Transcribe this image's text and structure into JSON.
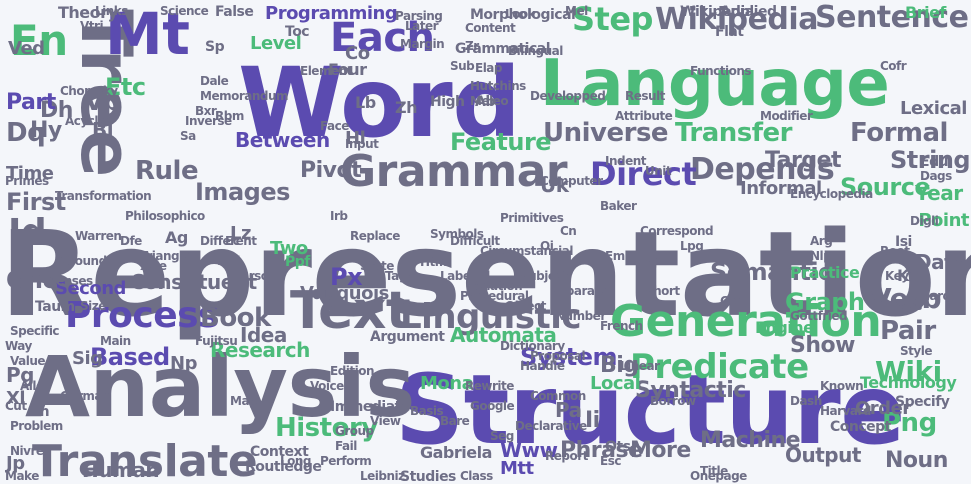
{
  "palette": {
    "gray": "#6e6e86",
    "purple": "#5b4bb0",
    "green": "#4cbb7a",
    "light_gray": "#8a8aa0",
    "pale_gray": "#9c9cae",
    "background": "#f4f6fa"
  },
  "words": [
    {
      "text": "Representation",
      "color": "gray"
    },
    {
      "text": "Structure",
      "color": "purple"
    },
    {
      "text": "Word",
      "color": "purple"
    },
    {
      "text": "Language",
      "color": "green"
    },
    {
      "text": "Analysis",
      "color": "gray"
    },
    {
      "text": "Tree",
      "color": "gray"
    },
    {
      "text": "Mt",
      "color": "purple"
    },
    {
      "text": "Text",
      "color": "gray"
    },
    {
      "text": "Generation",
      "color": "green"
    },
    {
      "text": "Grammar",
      "color": "gray"
    },
    {
      "text": "Translate",
      "color": "gray"
    },
    {
      "text": "Process",
      "color": "purple"
    },
    {
      "text": "Linguistic",
      "color": "gray"
    },
    {
      "text": "Each",
      "color": "purple"
    },
    {
      "text": "En",
      "color": "green"
    },
    {
      "text": "Wikipedia",
      "color": "gray"
    },
    {
      "text": "Sentence",
      "color": "gray"
    },
    {
      "text": "Step",
      "color": "green"
    },
    {
      "text": "Universe",
      "color": "gray"
    },
    {
      "text": "Transfer",
      "color": "green"
    },
    {
      "text": "Depends",
      "color": "gray"
    },
    {
      "text": "Direct",
      "color": "purple"
    },
    {
      "text": "Predicate",
      "color": "green"
    },
    {
      "text": "Images",
      "color": "gray"
    },
    {
      "text": "Rule",
      "color": "gray"
    },
    {
      "text": "Feature",
      "color": "green"
    },
    {
      "text": "History",
      "color": "green"
    },
    {
      "text": "System",
      "color": "purple"
    },
    {
      "text": "Wiki",
      "color": "green"
    },
    {
      "text": "Png",
      "color": "green"
    },
    {
      "text": "Book",
      "color": "gray"
    },
    {
      "text": "Research",
      "color": "green"
    },
    {
      "text": "Based",
      "color": "purple"
    },
    {
      "text": "Between",
      "color": "purple"
    },
    {
      "text": "Formal",
      "color": "gray"
    },
    {
      "text": "String",
      "color": "gray"
    },
    {
      "text": "Verb",
      "color": "gray"
    },
    {
      "text": "Pair",
      "color": "gray"
    },
    {
      "text": "Graph",
      "color": "green"
    },
    {
      "text": "Semantic",
      "color": "gray"
    },
    {
      "text": "Data",
      "color": "gray"
    },
    {
      "text": "Lexical",
      "color": "gray"
    },
    {
      "text": "Target",
      "color": "gray"
    },
    {
      "text": "Source",
      "color": "green"
    },
    {
      "text": "Year",
      "color": "green"
    },
    {
      "text": "Point",
      "color": "green"
    },
    {
      "text": "Informal",
      "color": "gray"
    },
    {
      "text": "Human",
      "color": "gray"
    },
    {
      "text": "Machine",
      "color": "gray"
    },
    {
      "text": "Output",
      "color": "gray"
    },
    {
      "text": "Noun",
      "color": "gray"
    },
    {
      "text": "Phrase",
      "color": "gray"
    },
    {
      "text": "More",
      "color": "gray"
    },
    {
      "text": "Www",
      "color": "purple"
    },
    {
      "text": "Mtt",
      "color": "purple"
    },
    {
      "text": "Ots",
      "color": "gray"
    },
    {
      "text": "Automata",
      "color": "green"
    },
    {
      "text": "Syntactic",
      "color": "gray"
    },
    {
      "text": "Show",
      "color": "gray"
    },
    {
      "text": "Order",
      "color": "gray"
    },
    {
      "text": "Technology",
      "color": "green"
    },
    {
      "text": "Local",
      "color": "green"
    },
    {
      "text": "Big",
      "color": "gray"
    },
    {
      "text": "Pa",
      "color": "gray"
    },
    {
      "text": "Ii",
      "color": "gray"
    },
    {
      "text": "Idea",
      "color": "gray"
    },
    {
      "text": "Px",
      "color": "purple"
    },
    {
      "text": "Vauquois",
      "color": "gray"
    },
    {
      "text": "Constituent",
      "color": "gray"
    },
    {
      "text": "Second",
      "color": "purple"
    },
    {
      "text": "One",
      "color": "gray"
    },
    {
      "text": "Id",
      "color": "gray"
    },
    {
      "text": "First",
      "color": "gray"
    },
    {
      "text": "Time",
      "color": "gray"
    },
    {
      "text": "Dq",
      "color": "gray"
    },
    {
      "text": "Etc",
      "color": "green"
    },
    {
      "text": "Vp",
      "color": "gray"
    },
    {
      "text": "Bl",
      "color": "gray"
    },
    {
      "text": "Dh",
      "color": "gray"
    },
    {
      "text": "Hy",
      "color": "gray"
    },
    {
      "text": "Part",
      "color": "purple"
    },
    {
      "text": "Ved",
      "color": "gray"
    },
    {
      "text": "Theory",
      "color": "gray"
    },
    {
      "text": "Level",
      "color": "green"
    },
    {
      "text": "Programming",
      "color": "purple"
    },
    {
      "text": "Toc",
      "color": "gray"
    },
    {
      "text": "False",
      "color": "gray"
    },
    {
      "text": "Four",
      "color": "gray"
    },
    {
      "text": "Co",
      "color": "gray"
    },
    {
      "text": "Lb",
      "color": "gray"
    },
    {
      "text": "Hl",
      "color": "gray"
    },
    {
      "text": "Zh",
      "color": "gray"
    },
    {
      "text": "Uk",
      "color": "gray"
    },
    {
      "text": "Pivot",
      "color": "gray"
    },
    {
      "text": "Two",
      "color": "green"
    },
    {
      "text": "Lz",
      "color": "gray"
    },
    {
      "text": "Sp",
      "color": "gray"
    },
    {
      "text": "Ag",
      "color": "gray"
    },
    {
      "text": "Sig",
      "color": "gray"
    },
    {
      "text": "Np",
      "color": "gray"
    },
    {
      "text": "Pg",
      "color": "gray"
    },
    {
      "text": "Xl",
      "color": "gray"
    },
    {
      "text": "Jp",
      "color": "gray"
    },
    {
      "text": "Mona",
      "color": "green"
    },
    {
      "text": "Engine",
      "color": "green"
    },
    {
      "text": "Practice",
      "color": "green"
    },
    {
      "text": "Ppf",
      "color": "green"
    },
    {
      "text": "Ab",
      "color": "gray"
    },
    {
      "text": "High",
      "color": "gray"
    },
    {
      "text": "Edu",
      "color": "gray"
    },
    {
      "text": "Isi",
      "color": "gray"
    },
    {
      "text": "Ka",
      "color": "gray"
    },
    {
      "text": "Wikipedia",
      "color": "gray"
    },
    {
      "text": "Bilingual",
      "color": "gray"
    },
    {
      "text": "Morphological",
      "color": "gray"
    },
    {
      "text": "Grammatical",
      "color": "gray"
    },
    {
      "text": "Applied",
      "color": "gray"
    },
    {
      "text": "Brief",
      "color": "green"
    },
    {
      "text": "Flat",
      "color": "gray"
    },
    {
      "text": "Look",
      "color": "gray"
    },
    {
      "text": "Links",
      "color": "gray"
    },
    {
      "text": "Science",
      "color": "gray"
    },
    {
      "text": "Parsing",
      "color": "gray"
    },
    {
      "text": "Content",
      "color": "gray"
    },
    {
      "text": "Functions",
      "color": "gray"
    },
    {
      "text": "Margin",
      "color": "gray"
    },
    {
      "text": "Element",
      "color": "gray"
    },
    {
      "text": "Memorandum",
      "color": "gray"
    },
    {
      "text": "Later",
      "color": "gray"
    },
    {
      "text": "Hutchins",
      "color": "gray"
    },
    {
      "text": "Transformation",
      "color": "gray"
    },
    {
      "text": "Philosophico",
      "color": "gray"
    },
    {
      "text": "Inverse",
      "color": "gray"
    },
    {
      "text": "Face",
      "color": "gray"
    },
    {
      "text": "Input",
      "color": "gray"
    },
    {
      "text": "Different",
      "color": "gray"
    },
    {
      "text": "Replace",
      "color": "gray"
    },
    {
      "text": "Difficult",
      "color": "gray"
    },
    {
      "text": "Circumstancial",
      "color": "gray"
    },
    {
      "text": "Primitives",
      "color": "gray"
    },
    {
      "text": "Relation",
      "color": "gray"
    },
    {
      "text": "Separate",
      "color": "gray"
    },
    {
      "text": "Correspond",
      "color": "gray"
    },
    {
      "text": "Encyclopedia",
      "color": "gray"
    },
    {
      "text": "Modifier",
      "color": "gray"
    },
    {
      "text": "Attribute",
      "color": "gray"
    },
    {
      "text": "Developped",
      "color": "gray"
    },
    {
      "text": "Result",
      "color": "gray"
    },
    {
      "text": "Unit",
      "color": "gray"
    },
    {
      "text": "Indent",
      "color": "gray"
    },
    {
      "text": "Baker",
      "color": "gray"
    },
    {
      "text": "Computer",
      "color": "gray"
    },
    {
      "text": "Labeled",
      "color": "gray"
    },
    {
      "text": "Procedural",
      "color": "gray"
    },
    {
      "text": "Object",
      "color": "gray"
    },
    {
      "text": "Number",
      "color": "gray"
    },
    {
      "text": "French",
      "color": "gray"
    },
    {
      "text": "Dictionary",
      "color": "gray"
    },
    {
      "text": "Proposal",
      "color": "gray"
    },
    {
      "text": "Argument",
      "color": "gray"
    },
    {
      "text": "Declarative",
      "color": "gray"
    },
    {
      "text": "Rewrite",
      "color": "gray"
    },
    {
      "text": "Common",
      "color": "gray"
    },
    {
      "text": "Handle",
      "color": "gray"
    },
    {
      "text": "Linear",
      "color": "gray"
    },
    {
      "text": "Immediate",
      "color": "gray"
    },
    {
      "text": "Basis",
      "color": "gray"
    },
    {
      "text": "View",
      "color": "gray"
    },
    {
      "text": "Gabriela",
      "color": "gray"
    },
    {
      "text": "Studies",
      "color": "gray"
    },
    {
      "text": "Routledge",
      "color": "gray"
    },
    {
      "text": "Context",
      "color": "gray"
    },
    {
      "text": "Perform",
      "color": "gray"
    },
    {
      "text": "Leibniz",
      "color": "gray"
    },
    {
      "text": "Taum",
      "color": "gray"
    },
    {
      "text": "Ground",
      "color": "gray"
    },
    {
      "text": "Main",
      "color": "gray"
    },
    {
      "text": "Specific",
      "color": "gray"
    },
    {
      "text": "Way",
      "color": "gray"
    },
    {
      "text": "Value",
      "color": "gray"
    },
    {
      "text": "Size",
      "color": "gray"
    },
    {
      "text": "Map",
      "color": "gray"
    },
    {
      "text": "Zn",
      "color": "gray"
    },
    {
      "text": "Problem",
      "color": "gray"
    },
    {
      "text": "Report",
      "color": "gray"
    },
    {
      "text": "Title",
      "color": "gray"
    },
    {
      "text": "Dash",
      "color": "gray"
    },
    {
      "text": "Concept",
      "color": "gray"
    },
    {
      "text": "Harvard",
      "color": "gray"
    },
    {
      "text": "Style",
      "color": "gray"
    },
    {
      "text": "Atlas",
      "color": "gray"
    },
    {
      "text": "Specify",
      "color": "gray"
    },
    {
      "text": "Known",
      "color": "gray"
    },
    {
      "text": "Warren",
      "color": "gray"
    },
    {
      "text": "Arg",
      "color": "gray"
    },
    {
      "text": "Root",
      "color": "gray"
    },
    {
      "text": "Dfe",
      "color": "gray"
    },
    {
      "text": "Triangle",
      "color": "gray"
    },
    {
      "text": "State",
      "color": "gray"
    },
    {
      "text": "Tags",
      "color": "gray"
    },
    {
      "text": "Symbols",
      "color": "gray"
    },
    {
      "text": "Subject",
      "color": "gray"
    },
    {
      "text": "Short",
      "color": "gray"
    },
    {
      "text": "Gottfried",
      "color": "gray"
    },
    {
      "text": "Hard",
      "color": "gray"
    },
    {
      "text": "Irb",
      "color": "gray"
    },
    {
      "text": "Fujitsu",
      "color": "gray"
    },
    {
      "text": "Cut",
      "color": "gray"
    },
    {
      "text": "Make",
      "color": "gray"
    },
    {
      "text": "Fail",
      "color": "gray"
    },
    {
      "text": "Long",
      "color": "gray"
    },
    {
      "text": "Class",
      "color": "gray"
    },
    {
      "text": "Google",
      "color": "gray"
    },
    {
      "text": "Esc",
      "color": "gray"
    },
    {
      "text": "Mel",
      "color": "gray"
    },
    {
      "text": "Vtri",
      "color": "gray"
    },
    {
      "text": "Rrsc",
      "color": "gray"
    },
    {
      "text": "Ec",
      "color": "gray"
    },
    {
      "text": "Xzle",
      "color": "gray"
    },
    {
      "text": "Vqd",
      "color": "gray"
    },
    {
      "text": "Acyclic",
      "color": "gray"
    },
    {
      "text": "Digli",
      "color": "gray"
    },
    {
      "text": "Cofr",
      "color": "gray"
    },
    {
      "text": "Meleo",
      "color": "gray"
    },
    {
      "text": "Elap",
      "color": "gray"
    },
    {
      "text": "Sub",
      "color": "gray"
    },
    {
      "text": "Zr",
      "color": "gray"
    },
    {
      "text": "Sa",
      "color": "gray"
    },
    {
      "text": "Bxr",
      "color": "gray"
    },
    {
      "text": "Rbm",
      "color": "gray"
    },
    {
      "text": "Dale",
      "color": "gray"
    },
    {
      "text": "Alle",
      "color": "gray"
    },
    {
      "text": "Chomsky",
      "color": "gray"
    },
    {
      "text": "Voice",
      "color": "gray"
    },
    {
      "text": "Edition",
      "color": "gray"
    },
    {
      "text": "Group",
      "color": "gray"
    },
    {
      "text": "Seg",
      "color": "gray"
    },
    {
      "text": "Bare",
      "color": "gray"
    },
    {
      "text": "Nivre",
      "color": "gray"
    },
    {
      "text": "German",
      "color": "gray"
    },
    {
      "text": "Tenses",
      "color": "gray"
    },
    {
      "text": "Primes",
      "color": "gray"
    },
    {
      "text": "Onepage",
      "color": "gray"
    },
    {
      "text": "Borrow",
      "color": "gray"
    },
    {
      "text": "Dags",
      "color": "gray"
    },
    {
      "text": "Com",
      "color": "gray"
    },
    {
      "text": "Nlp",
      "color": "gray"
    },
    {
      "text": "Spu",
      "color": "gray"
    },
    {
      "text": "Key",
      "color": "gray"
    },
    {
      "text": "Cn",
      "color": "gray"
    },
    {
      "text": "Lpg",
      "color": "gray"
    },
    {
      "text": "Em",
      "color": "gray"
    },
    {
      "text": "Htm",
      "color": "gray"
    },
    {
      "text": "Oi",
      "color": "gray"
    }
  ]
}
